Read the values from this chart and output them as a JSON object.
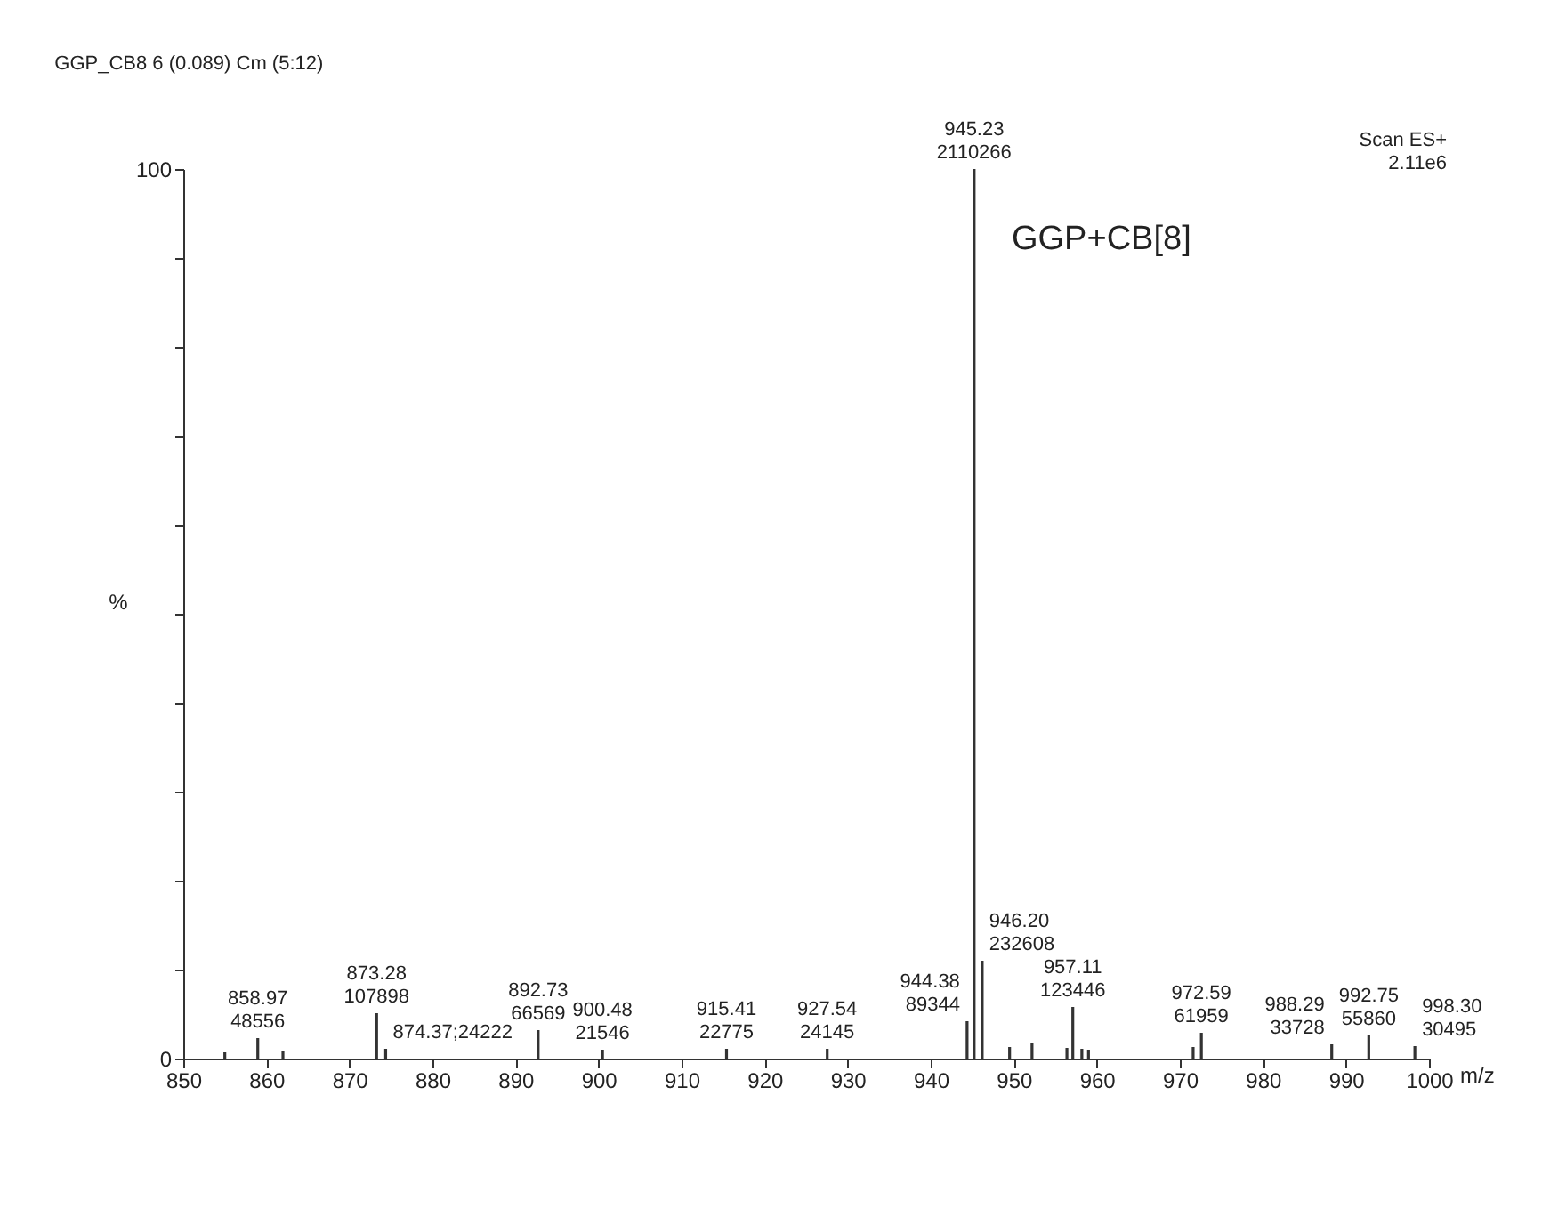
{
  "chart_data": {
    "type": "bar",
    "title": "GGP_CB8 6 (0.089) Cm (5:12)",
    "ylabel": "%",
    "xlabel": "m/z",
    "annotations": [
      "Scan ES+\n2.11e6",
      "GGP+CB[8]",
      {
        "text": "858.97\n48556",
        "x": 858.97,
        "y": 2.3
      },
      {
        "text": "873.28\n107898",
        "x": 873.28,
        "y": 5.1
      },
      {
        "text": "874.37;24222",
        "x": 874.37,
        "y": 1.1
      },
      {
        "text": "892.73\n66569",
        "x": 892.73,
        "y": 3.2
      },
      {
        "text": "900.48\n21546",
        "x": 900.48,
        "y": 1.0
      },
      {
        "text": "915.41\n22775",
        "x": 915.41,
        "y": 1.1
      },
      {
        "text": "927.54\n24145",
        "x": 927.54,
        "y": 1.1
      },
      {
        "text": "944.38\n89344",
        "x": 944.38,
        "y": 4.2
      },
      {
        "text": "945.23\n2110266",
        "x": 945.23,
        "y": 100
      },
      {
        "text": "946.20\n232608",
        "x": 946.2,
        "y": 11.0
      },
      {
        "text": "957.11\n123446",
        "x": 957.11,
        "y": 5.8
      },
      {
        "text": "972.59\n61959",
        "x": 972.59,
        "y": 2.9
      },
      {
        "text": "988.29\n33728",
        "x": 988.29,
        "y": 1.6
      },
      {
        "text": "992.75\n55860",
        "x": 992.75,
        "y": 2.6
      },
      {
        "text": "998.30\n30495",
        "x": 998.3,
        "y": 1.4
      }
    ],
    "x": [
      855.0,
      858.97,
      862.0,
      873.28,
      874.37,
      892.73,
      900.48,
      915.41,
      927.54,
      944.38,
      945.23,
      946.2,
      949.5,
      952.2,
      956.4,
      957.11,
      958.2,
      959.0,
      971.6,
      972.59,
      988.29,
      992.75,
      998.3
    ],
    "values": [
      0.7,
      2.3,
      0.9,
      5.1,
      1.1,
      3.2,
      1.0,
      1.1,
      1.1,
      4.2,
      100,
      11.0,
      1.3,
      1.7,
      1.2,
      5.8,
      1.1,
      1.0,
      1.3,
      2.9,
      1.6,
      2.6,
      1.4
    ],
    "color": "#333333",
    "xlim": [
      850,
      1000
    ],
    "xticks": [
      850,
      860,
      870,
      880,
      890,
      900,
      910,
      920,
      930,
      940,
      950,
      960,
      970,
      980,
      990,
      1000
    ],
    "ylim": [
      0,
      100
    ],
    "yticks": [
      0,
      {
        "value": 10,
        "label": null
      },
      {
        "value": 20,
        "label": null
      },
      {
        "value": 30,
        "label": null
      },
      {
        "value": 40,
        "label": null
      },
      {
        "value": 50,
        "label": null
      },
      {
        "value": 60,
        "label": null
      },
      {
        "value": 70,
        "label": null
      },
      {
        "value": 80,
        "label": null
      },
      {
        "value": 90,
        "label": null
      },
      100
    ],
    "grid": false
  }
}
